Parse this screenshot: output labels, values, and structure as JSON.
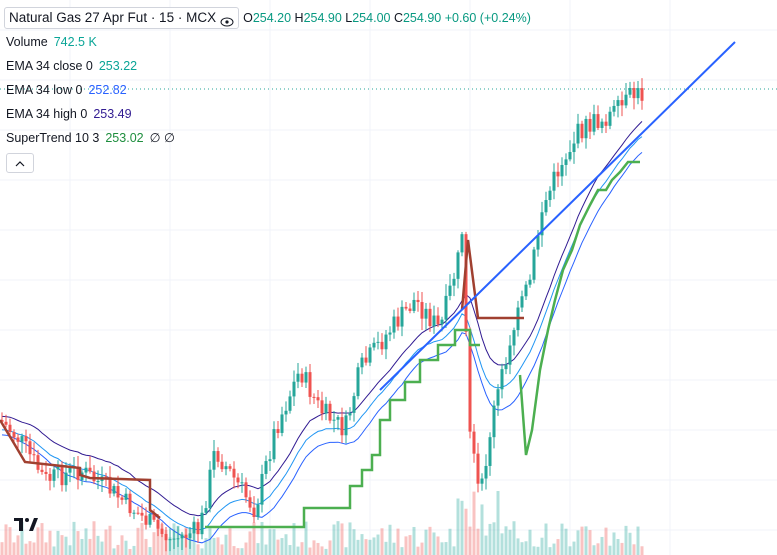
{
  "symbol_title": "Natural Gas 27 Apr Fut · 15 · MCX",
  "ohlc": {
    "open_label": "O",
    "open": "254.20",
    "high_label": "H",
    "high": "254.90",
    "low_label": "L",
    "low": "254.00",
    "close_label": "C",
    "close": "254.90",
    "change": "+0.60 (+0.24%)"
  },
  "indicators": [
    {
      "name": "Volume",
      "value": "742.5 K"
    },
    {
      "name": "EMA 34 close 0",
      "value": "253.22"
    },
    {
      "name": "EMA 34 low 0",
      "value": "252.82"
    },
    {
      "name": "EMA 34 high 0",
      "value": "253.49"
    },
    {
      "name": "SuperTrend 10 3",
      "value": "253.02",
      "extra": "∅ ∅"
    }
  ],
  "icons": [
    "eye-icon",
    "chevron-up-icon",
    "tradingview-logo-icon"
  ],
  "colors": {
    "bull": "#26a69a",
    "bear": "#ef5350",
    "ema_close": "#2196f3",
    "ema_low": "#2962ff",
    "ema_high": "#311b92",
    "supertrend_up": "#4caf50",
    "supertrend_down": "#b71c1c",
    "trendline": "#2962ff"
  }
}
